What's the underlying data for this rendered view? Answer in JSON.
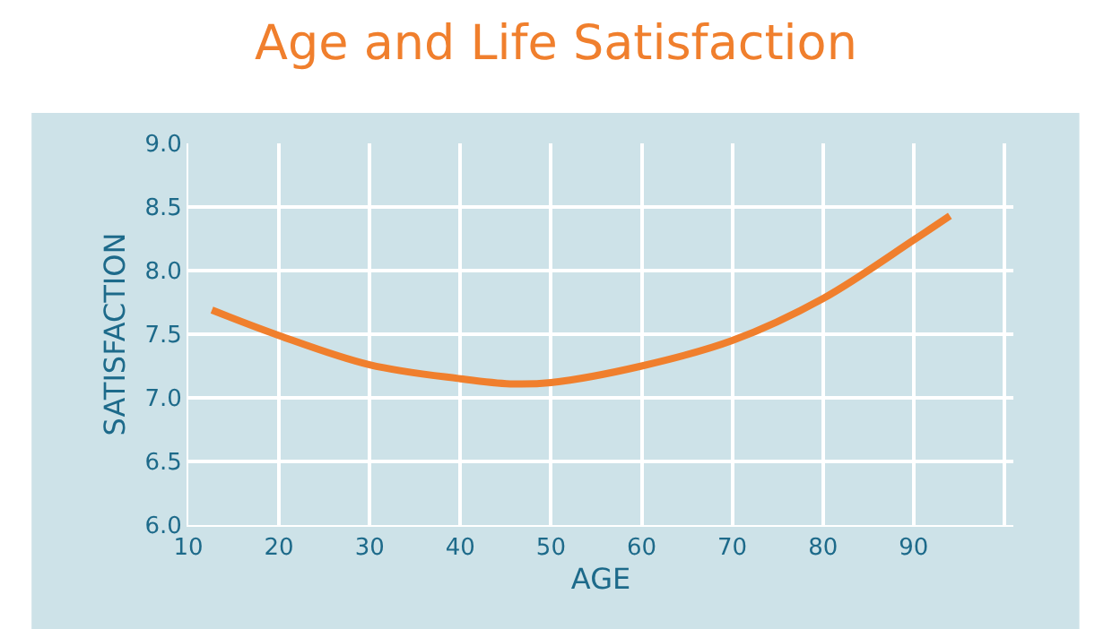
{
  "chart_data": {
    "type": "line",
    "title": "Age and Life Satisfaction",
    "xlabel": "AGE",
    "ylabel": "SATISFACTION",
    "x": [
      12.6,
      20,
      30,
      40,
      45.5,
      50,
      60,
      70,
      80,
      90,
      94
    ],
    "series": [
      {
        "color": "#f07f2d",
        "values": [
          7.69,
          7.49,
          7.26,
          7.15,
          7.11,
          7.12,
          7.25,
          7.45,
          7.78,
          8.24,
          8.43
        ]
      }
    ],
    "xlim": [
      10,
      101
    ],
    "xticks": [
      10,
      20,
      30,
      40,
      50,
      60,
      70,
      80,
      90,
      {
        "value": 100,
        "label": null
      }
    ],
    "ylim": [
      6,
      9
    ],
    "yticks": [
      {
        "value": 6,
        "label": "6.0"
      },
      {
        "value": 6.5,
        "label": "6.5"
      },
      {
        "value": 7,
        "label": "7.0"
      },
      {
        "value": 7.5,
        "label": "7.5"
      },
      {
        "value": 8,
        "label": "8.0"
      },
      {
        "value": 8.5,
        "label": "8.5"
      },
      {
        "value": 9,
        "label": "9.0"
      }
    ],
    "grid": true,
    "marker": "none",
    "line_style": "solid"
  }
}
